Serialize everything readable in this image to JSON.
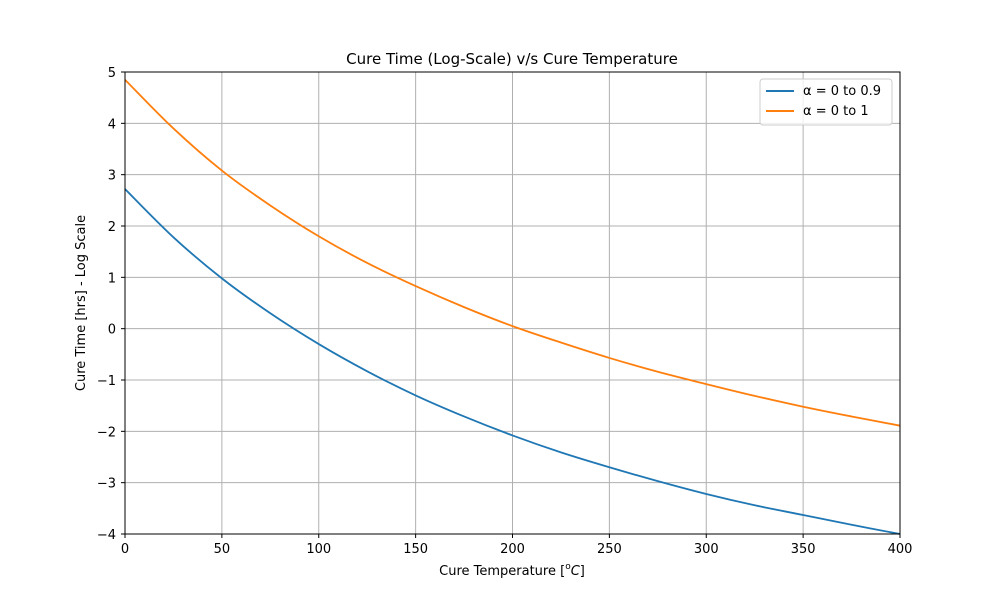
{
  "chart_data": {
    "type": "line",
    "title": "Cure Time (Log-Scale) v/s Cure Temperature",
    "xlabel": "Cure Temperature [",
    "xlabel_unit_super": "o",
    "xlabel_unit_main": "C",
    "xlabel_close": "]",
    "ylabel": "Cure Time [hrs] - Log Scale",
    "xlim": [
      0,
      400
    ],
    "ylim": [
      -4,
      5
    ],
    "xticks": [
      0,
      50,
      100,
      150,
      200,
      250,
      300,
      350,
      400
    ],
    "xtick_labels": [
      "0",
      "50",
      "100",
      "150",
      "200",
      "250",
      "300",
      "350",
      "400"
    ],
    "yticks": [
      -4,
      -3,
      -2,
      -1,
      0,
      1,
      2,
      3,
      4,
      5
    ],
    "ytick_labels": [
      "−4",
      "−3",
      "−2",
      "−1",
      "0",
      "1",
      "2",
      "3",
      "4",
      "5"
    ],
    "grid": true,
    "legend_position": "top-right",
    "series": [
      {
        "name": "α = 0 to 0.9",
        "color": "#1f77b4",
        "x": [
          0,
          25,
          50,
          75,
          100,
          125,
          150,
          175,
          200,
          225,
          250,
          275,
          300,
          325,
          350,
          375,
          400
        ],
        "y": [
          2.72,
          1.78,
          0.98,
          0.3,
          -0.3,
          -0.83,
          -1.3,
          -1.71,
          -2.08,
          -2.41,
          -2.7,
          -2.97,
          -3.22,
          -3.44,
          -3.63,
          -3.82,
          -4.0
        ]
      },
      {
        "name": "α = 0 to 1",
        "color": "#ff7f0e",
        "x": [
          0,
          25,
          50,
          75,
          100,
          125,
          150,
          175,
          200,
          225,
          250,
          275,
          300,
          325,
          350,
          375,
          400
        ],
        "y": [
          4.85,
          3.9,
          3.08,
          2.4,
          1.8,
          1.28,
          0.83,
          0.42,
          0.05,
          -0.27,
          -0.57,
          -0.84,
          -1.08,
          -1.31,
          -1.52,
          -1.71,
          -1.89
        ]
      }
    ]
  }
}
